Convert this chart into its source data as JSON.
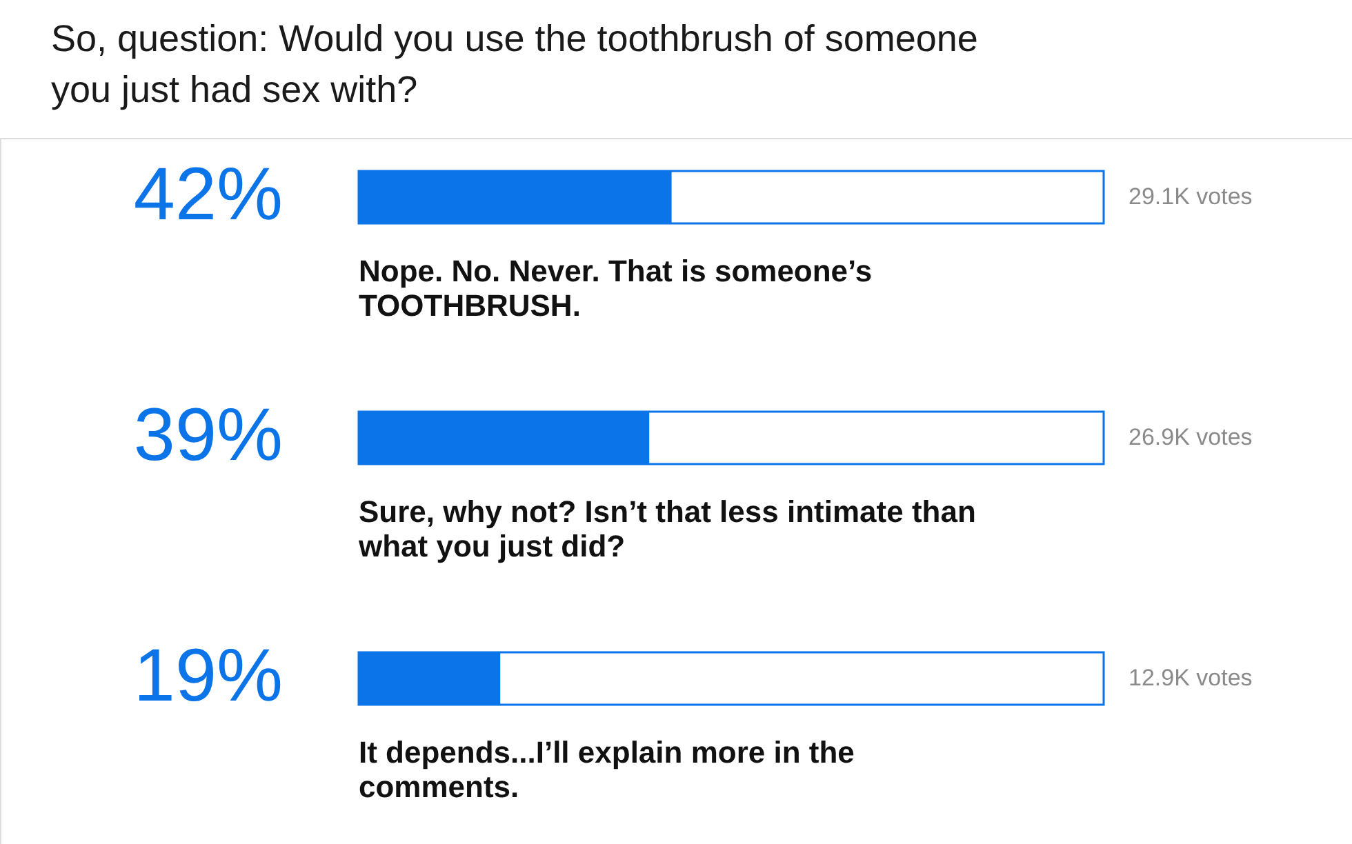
{
  "chart_data": {
    "type": "bar",
    "orientation": "horizontal",
    "title": "So, question: Would you use the toothbrush of someone you just had sex with?",
    "categories": [
      "Nope. No. Never. That is someone’s TOOTHBRUSH.",
      "Sure, why not? Isn’t that less intimate than what you just did?",
      "It depends...I’ll explain more in the comments."
    ],
    "values": [
      42,
      39,
      19
    ],
    "color": "#0a74e8",
    "value_labels": [
      "42%",
      "39%",
      "19%"
    ],
    "annotations": [
      "29.1K votes",
      "26.9K votes",
      "12.9K votes"
    ],
    "xlim": [
      0,
      100
    ],
    "tick_labels": false
  }
}
